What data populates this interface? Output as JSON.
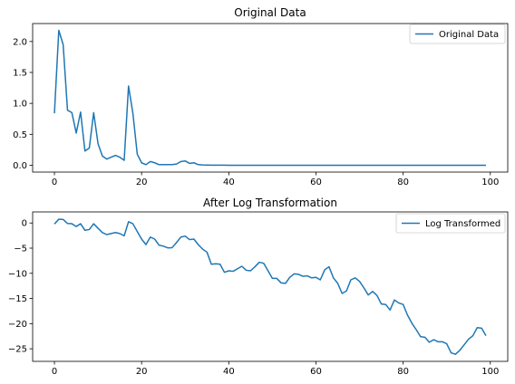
{
  "chart_data": [
    {
      "type": "line",
      "title": "Original Data",
      "xlabel": "",
      "ylabel": "",
      "xlim": [
        -5,
        104
      ],
      "ylim": [
        -0.11,
        2.29
      ],
      "grid": false,
      "legend_position": "top-right",
      "xticks": [
        0,
        20,
        40,
        60,
        80,
        100
      ],
      "yticks": [
        0.0,
        0.5,
        1.0,
        1.5,
        2.0
      ],
      "xtick_labels": [
        "0",
        "20",
        "40",
        "60",
        "80",
        "100"
      ],
      "ytick_labels": [
        "0.0",
        "0.5",
        "1.0",
        "1.5",
        "2.0"
      ],
      "series": [
        {
          "name": "Original Data",
          "color": "#1f77b4",
          "x": [
            0,
            1,
            2,
            3,
            4,
            5,
            6,
            7,
            8,
            9,
            10,
            11,
            12,
            13,
            14,
            15,
            16,
            17,
            18,
            19,
            20,
            21,
            22,
            23,
            24,
            25,
            26,
            27,
            28,
            29,
            30,
            31,
            32,
            33,
            34,
            35,
            36,
            37,
            38,
            39,
            40,
            41,
            42,
            43,
            44,
            45,
            46,
            47,
            48,
            49,
            50,
            51,
            52,
            53,
            54,
            55,
            56,
            57,
            58,
            59,
            60,
            61,
            62,
            63,
            64,
            65,
            66,
            67,
            68,
            69,
            70,
            71,
            72,
            73,
            74,
            75,
            76,
            77,
            78,
            79,
            80,
            81,
            82,
            83,
            84,
            85,
            86,
            87,
            88,
            89,
            90,
            91,
            92,
            93,
            94,
            95,
            96,
            97,
            98,
            99
          ],
          "values": [
            0.84,
            2.18,
            1.95,
            0.89,
            0.85,
            0.52,
            0.86,
            0.23,
            0.28,
            0.85,
            0.35,
            0.15,
            0.1,
            0.13,
            0.16,
            0.13,
            0.08,
            1.28,
            0.84,
            0.18,
            0.04,
            0.01,
            0.06,
            0.04,
            0.01,
            0.01,
            0.01,
            0.01,
            0.02,
            0.06,
            0.07,
            0.03,
            0.04,
            0.01,
            0.005,
            0.003,
            0.002,
            0.001,
            0.001,
            0.001,
            0.0005,
            0.0003,
            0.0002,
            0.0001,
            0.0001,
            0.0001,
            0.0001,
            0.0001,
            0.0001,
            0.0001,
            0.0001,
            0.0001,
            0.0001,
            0.0001,
            0.0001,
            0.0001,
            0.0001,
            0.0001,
            0.0001,
            0.0001,
            0.0001,
            0.0001,
            0.0001,
            0.0001,
            0.0001,
            0.0001,
            0.0001,
            0.0001,
            0.0001,
            0.0001,
            0.0001,
            0.0001,
            0.0001,
            0.0001,
            0.0001,
            0.0001,
            0.0001,
            0.0001,
            0.0001,
            0.0001,
            0.0001,
            0.0001,
            0.0001,
            0.0001,
            0.0001,
            0.0001,
            0.0001,
            0.0001,
            0.0001,
            0.0001,
            0.0001,
            0.0001,
            0.0001,
            0.0001,
            0.0001,
            0.0001,
            0.0001,
            0.0001,
            0.0001,
            0.0001
          ]
        }
      ]
    },
    {
      "type": "line",
      "title": "After Log Transformation",
      "xlabel": "",
      "ylabel": "",
      "xlim": [
        -5,
        104
      ],
      "ylim": [
        -27.5,
        2.2
      ],
      "grid": false,
      "legend_position": "top-right",
      "xticks": [
        0,
        20,
        40,
        60,
        80,
        100
      ],
      "yticks": [
        0,
        -5,
        -10,
        -15,
        -20,
        -25
      ],
      "xtick_labels": [
        "0",
        "20",
        "40",
        "60",
        "80",
        "100"
      ],
      "ytick_labels": [
        "0",
        "−5",
        "−10",
        "−15",
        "−20",
        "−25"
      ],
      "series": [
        {
          "name": "Log Transformed",
          "color": "#1f77b4",
          "x": [
            0,
            1,
            2,
            3,
            4,
            5,
            6,
            7,
            8,
            9,
            10,
            11,
            12,
            13,
            14,
            15,
            16,
            17,
            18,
            19,
            20,
            21,
            22,
            23,
            24,
            25,
            26,
            27,
            28,
            29,
            30,
            31,
            32,
            33,
            34,
            35,
            36,
            37,
            38,
            39,
            40,
            41,
            42,
            43,
            44,
            45,
            46,
            47,
            48,
            49,
            50,
            51,
            52,
            53,
            54,
            55,
            56,
            57,
            58,
            59,
            60,
            61,
            62,
            63,
            64,
            65,
            66,
            67,
            68,
            69,
            70,
            71,
            72,
            73,
            74,
            75,
            76,
            77,
            78,
            79,
            80,
            81,
            82,
            83,
            84,
            85,
            86,
            87,
            88,
            89,
            90,
            91,
            92,
            93,
            94,
            95,
            96,
            97,
            98,
            99
          ],
          "values": [
            -0.2,
            0.75,
            0.7,
            -0.1,
            -0.15,
            -0.7,
            -0.15,
            -1.45,
            -1.3,
            -0.15,
            -1.05,
            -1.9,
            -2.3,
            -2.1,
            -1.9,
            -2.1,
            -2.55,
            0.25,
            -0.15,
            -1.7,
            -3.2,
            -4.3,
            -2.8,
            -3.2,
            -4.4,
            -4.6,
            -4.95,
            -4.9,
            -3.9,
            -2.8,
            -2.6,
            -3.3,
            -3.2,
            -4.3,
            -5.2,
            -5.8,
            -8.2,
            -8.1,
            -8.2,
            -9.8,
            -9.5,
            -9.6,
            -9.1,
            -8.6,
            -9.4,
            -9.5,
            -8.7,
            -7.8,
            -8.0,
            -9.5,
            -11.0,
            -11.0,
            -11.9,
            -12.0,
            -10.8,
            -10.1,
            -10.2,
            -10.6,
            -10.5,
            -10.9,
            -10.8,
            -11.3,
            -9.3,
            -8.7,
            -10.9,
            -12.0,
            -14.0,
            -13.5,
            -11.3,
            -10.9,
            -11.6,
            -12.9,
            -14.3,
            -13.6,
            -14.4,
            -16.1,
            -16.2,
            -17.3,
            -15.3,
            -15.9,
            -16.2,
            -18.3,
            -19.9,
            -21.2,
            -22.6,
            -22.7,
            -23.7,
            -23.2,
            -23.6,
            -23.6,
            -24.0,
            -25.8,
            -26.1,
            -25.3,
            -24.2,
            -23.1,
            -22.4,
            -20.8,
            -20.9,
            -22.4
          ]
        }
      ]
    }
  ]
}
